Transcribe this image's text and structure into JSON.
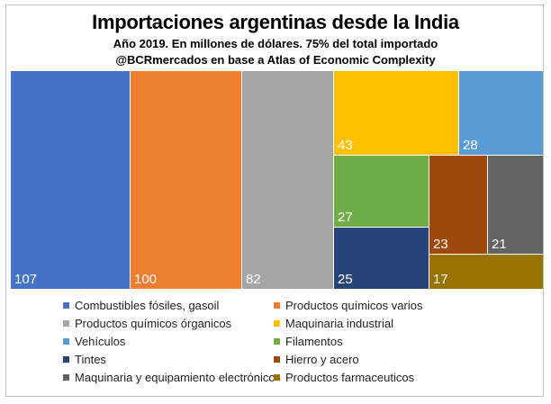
{
  "header": {
    "title": "Importaciones argentinas desde la India",
    "subtitle": "Año 2019. En millones de dólares. 75% del total importado",
    "source": "@BCRmercados en base a Atlas of Economic Complexity"
  },
  "chart_data": {
    "type": "treemap",
    "title": "Importaciones argentinas desde la India",
    "unit": "millones de dólares",
    "legend_position": "bottom",
    "items": [
      {
        "name": "Combustibles fósiles, gasoil",
        "value": 107,
        "color": "#4472C4"
      },
      {
        "name": "Productos químicos varios",
        "value": 100,
        "color": "#ED7D31"
      },
      {
        "name": "Productos químicos órganicos",
        "value": 82,
        "color": "#A5A5A5"
      },
      {
        "name": "Maquinaria industrial",
        "value": 43,
        "color": "#FFC000"
      },
      {
        "name": "Vehículos",
        "value": 28,
        "color": "#5B9BD5"
      },
      {
        "name": "Filamentos",
        "value": 27,
        "color": "#70AD47"
      },
      {
        "name": "Tintes",
        "value": 25,
        "color": "#264478"
      },
      {
        "name": "Hierro y acero",
        "value": 23,
        "color": "#9E480E"
      },
      {
        "name": "Maquinaria y equipamiento electrónico",
        "value": 21,
        "color": "#636363"
      },
      {
        "name": "Productos farmaceuticos",
        "value": 17,
        "color": "#997300"
      }
    ]
  }
}
